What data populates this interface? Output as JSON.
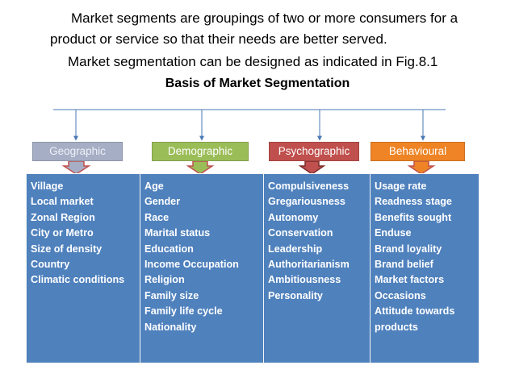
{
  "text": {
    "line1": "Market segments are groupings of two or more consumers for a",
    "line2": "product or service so that their needs are better served.",
    "line3": "Market segmentation can be designed as indicated in  Fig.8.1",
    "title": "Basis of Market Segmentation"
  },
  "categories": [
    {
      "label": "Geographic",
      "color": "#a6aec5"
    },
    {
      "label": "Demographic",
      "color": "#9bbd58"
    },
    {
      "label": "Psychographic",
      "color": "#c0504d"
    },
    {
      "label": "Behavioural",
      "color": "#ee8425"
    }
  ],
  "columns": [
    {
      "items": [
        "Village",
        "Local market",
        "Zonal Region",
        "City or Metro",
        "Size of density",
        "Country",
        "Climatic conditions"
      ]
    },
    {
      "items": [
        "Age",
        "Gender",
        "Race",
        "Marital status",
        "Education",
        "Income Occupation",
        "Religion",
        "Family size",
        "Family life cycle",
        "Nationality"
      ]
    },
    {
      "items": [
        "Compulsiveness",
        "Gregariousness",
        "Autonomy",
        "Conservation",
        "Leadership",
        "Authoritarianism",
        "Ambitiousness",
        "Personality"
      ]
    },
    {
      "items": [
        "Usage rate",
        "Readness  stage",
        "Benefits sought",
        "Enduse",
        "Brand loyality",
        "Brand belief",
        "Market factors",
        "Occasions",
        "Attitude towards",
        "products"
      ]
    }
  ],
  "colors": {
    "table_bg": "#4f81bd",
    "connector": "#4a7ab5"
  }
}
